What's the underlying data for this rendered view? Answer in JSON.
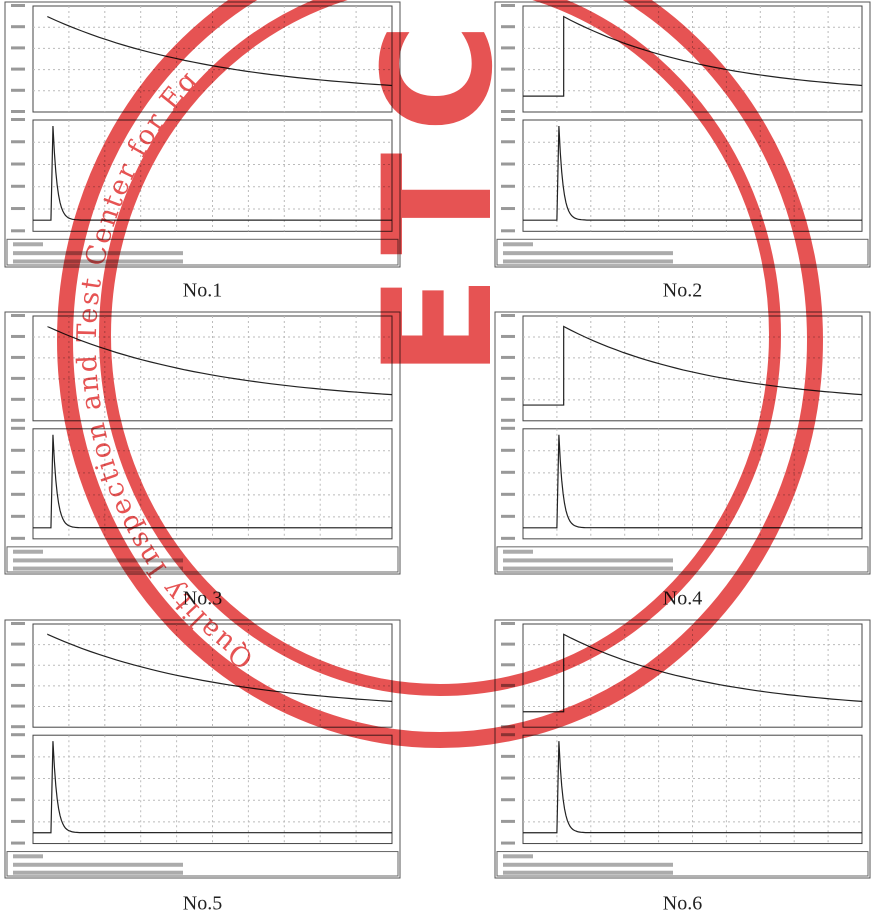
{
  "panels": [
    {
      "caption": "No.1"
    },
    {
      "caption": "No.2"
    },
    {
      "caption": "No.3"
    },
    {
      "caption": "No.4"
    },
    {
      "caption": "No.5"
    },
    {
      "caption": "No.6"
    }
  ],
  "stamp": {
    "center_text": "ETC",
    "ring_text": "Quality Inspection and Test Center for Eq"
  }
}
